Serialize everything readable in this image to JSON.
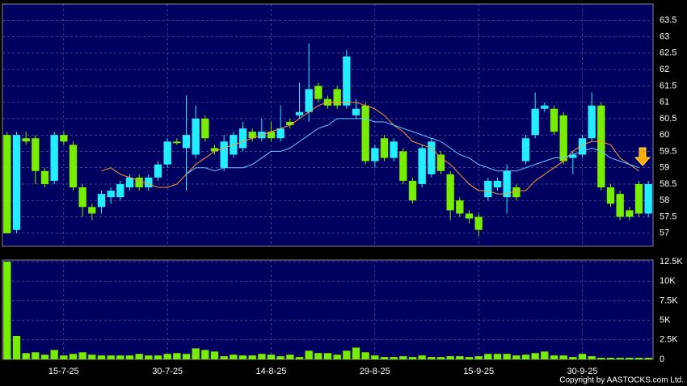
{
  "chart_data": [
    {
      "type": "candlestick",
      "ylim": [
        56.6,
        64.0
      ],
      "yticks": [
        57,
        57.5,
        58,
        58.5,
        59,
        59.5,
        60,
        60.5,
        61,
        61.5,
        62,
        62.5,
        63,
        63.5
      ],
      "grid": true,
      "up_color": "#22eeff",
      "down_color": "#77ee00",
      "open": [
        60.0,
        57.1,
        59.9,
        59.9,
        58.9,
        58.6,
        60.0,
        59.7,
        58.4,
        57.8,
        57.8,
        58.1,
        58.1,
        58.4,
        58.7,
        58.4,
        58.7,
        59.1,
        59.8,
        59.6,
        59.4,
        60.5,
        59.6,
        59.0,
        59.4,
        59.6,
        60.1,
        59.9,
        60.1,
        59.9,
        60.4,
        60.6,
        60.7,
        61.5,
        61.1,
        61.4,
        60.9,
        60.6,
        60.9,
        59.2,
        59.9,
        59.3,
        59.5,
        58.6,
        58.5,
        58.8,
        59.4,
        58.8,
        58.0,
        57.6,
        57.5,
        58.1,
        58.4,
        58.1,
        58.4,
        59.2,
        60.0,
        60.8,
        60.8,
        60.6,
        59.3,
        59.4,
        59.9,
        60.9,
        58.4,
        58.2,
        57.7,
        58.5,
        57.6
      ],
      "high": [
        60.1,
        60.1,
        60.1,
        60.0,
        59.0,
        60.1,
        60.1,
        59.8,
        58.5,
        57.9,
        58.3,
        58.4,
        58.6,
        58.8,
        58.8,
        58.8,
        59.2,
        59.9,
        59.9,
        61.2,
        60.9,
        60.6,
        59.7,
        60.0,
        60.1,
        60.4,
        60.2,
        60.5,
        60.4,
        60.9,
        60.5,
        61.6,
        62.8,
        61.6,
        61.2,
        61.5,
        62.6,
        61.1,
        61.0,
        59.7,
        60.0,
        59.9,
        59.6,
        58.7,
        59.7,
        59.9,
        59.5,
        58.9,
        58.1,
        57.7,
        57.6,
        58.7,
        58.7,
        59.1,
        58.5,
        60.0,
        61.3,
        61.0,
        60.9,
        60.7,
        59.5,
        60.0,
        61.3,
        61.0,
        58.5,
        58.3,
        57.8,
        58.6,
        58.6
      ],
      "low": [
        57.0,
        57.0,
        59.7,
        58.5,
        58.4,
        58.5,
        59.7,
        58.3,
        57.5,
        57.4,
        57.6,
        57.9,
        58.0,
        58.3,
        58.3,
        58.3,
        58.6,
        59.0,
        59.7,
        58.3,
        59.3,
        59.8,
        59.4,
        58.9,
        59.3,
        59.5,
        59.8,
        59.8,
        59.8,
        59.8,
        60.2,
        60.5,
        60.4,
        61.0,
        60.8,
        60.8,
        60.8,
        60.5,
        59.1,
        59.0,
        59.2,
        59.2,
        58.5,
        57.9,
        58.4,
        58.7,
        58.8,
        57.4,
        57.5,
        57.3,
        56.9,
        58.0,
        58.3,
        57.6,
        58.0,
        59.1,
        59.9,
        60.7,
        60.0,
        59.1,
        58.8,
        59.3,
        59.8,
        58.3,
        57.8,
        57.4,
        57.4,
        57.5,
        57.5
      ],
      "close": [
        57.0,
        60.0,
        59.8,
        58.9,
        58.5,
        60.0,
        59.8,
        58.4,
        57.8,
        57.6,
        58.2,
        58.3,
        58.5,
        58.7,
        58.4,
        58.7,
        59.1,
        59.8,
        59.75,
        60.0,
        60.5,
        59.9,
        59.5,
        59.8,
        60.0,
        60.2,
        59.9,
        60.1,
        59.9,
        60.2,
        60.3,
        60.7,
        61.4,
        61.1,
        60.9,
        60.9,
        62.4,
        60.8,
        59.2,
        59.6,
        59.3,
        59.8,
        58.6,
        58.0,
        59.6,
        59.8,
        58.9,
        57.7,
        57.6,
        57.45,
        57.1,
        58.6,
        58.6,
        58.9,
        58.1,
        59.9,
        60.8,
        60.9,
        60.1,
        59.2,
        59.4,
        59.9,
        60.9,
        58.4,
        57.9,
        57.5,
        57.5,
        57.6,
        58.5
      ],
      "lines": [
        {
          "color": "#ff9933",
          "values": [
            null,
            null,
            null,
            null,
            null,
            null,
            null,
            null,
            null,
            null,
            58.9,
            59.0,
            58.8,
            58.7,
            58.6,
            58.5,
            58.4,
            58.4,
            58.5,
            58.8,
            59.1,
            59.3,
            59.5,
            59.6,
            59.7,
            59.8,
            59.9,
            60.0,
            60.1,
            60.2,
            60.3,
            60.5,
            60.7,
            60.9,
            61.0,
            61.0,
            61.0,
            61.0,
            60.9,
            60.8,
            60.6,
            60.3,
            60.1,
            59.8,
            59.7,
            59.6,
            59.3,
            59.1,
            58.8,
            58.5,
            58.3,
            58.3,
            58.2,
            58.2,
            58.3,
            58.3,
            58.6,
            58.8,
            59.0,
            59.2,
            59.5,
            59.7,
            59.8,
            59.8,
            59.7,
            59.3,
            59.1,
            58.9,
            null
          ]
        },
        {
          "color": "#66ccff",
          "values": [
            null,
            null,
            null,
            null,
            null,
            null,
            null,
            null,
            null,
            null,
            null,
            null,
            null,
            null,
            null,
            null,
            null,
            null,
            null,
            58.8,
            59.0,
            59.0,
            58.9,
            59.0,
            59.0,
            59.0,
            59.1,
            59.3,
            59.5,
            59.5,
            59.6,
            59.8,
            60.0,
            60.2,
            60.3,
            60.5,
            60.5,
            60.5,
            60.5,
            60.4,
            60.4,
            60.3,
            60.2,
            60.1,
            60.0,
            59.9,
            59.8,
            59.6,
            59.4,
            59.3,
            59.1,
            59.0,
            58.9,
            58.9,
            58.9,
            59.0,
            59.1,
            59.2,
            59.3,
            59.3,
            59.4,
            59.5,
            59.6,
            59.5,
            59.3,
            59.2,
            59.1,
            59.0,
            null
          ]
        }
      ]
    },
    {
      "type": "bar",
      "color": "#77ee00",
      "grid": true,
      "ylim": [
        0,
        12700
      ],
      "yticks": [
        0,
        {
          "value": 2500,
          "label": "2.5K"
        },
        {
          "value": 5000,
          "label": "5K"
        },
        {
          "value": 7500,
          "label": "7.5K"
        },
        {
          "value": 10000,
          "label": "10K"
        },
        {
          "value": 12500,
          "label": "12.5K"
        }
      ],
      "categories": [
        null,
        null,
        null,
        null,
        null,
        null,
        "15-7-25",
        null,
        null,
        null,
        null,
        null,
        null,
        null,
        null,
        null,
        null,
        "30-7-25",
        null,
        null,
        null,
        null,
        null,
        null,
        null,
        null,
        null,
        null,
        "14-8-25",
        null,
        null,
        null,
        null,
        null,
        null,
        null,
        null,
        null,
        null,
        "29-8-25",
        null,
        null,
        null,
        null,
        null,
        null,
        null,
        null,
        null,
        null,
        "15-9-25",
        null,
        null,
        null,
        null,
        null,
        null,
        null,
        null,
        null,
        null,
        "30-9-25",
        null,
        null,
        null,
        null,
        null,
        null,
        null
      ],
      "values": [
        12500,
        3000,
        800,
        900,
        600,
        1200,
        500,
        700,
        900,
        600,
        500,
        500,
        500,
        500,
        700,
        500,
        500,
        700,
        800,
        700,
        1400,
        1200,
        1000,
        400,
        600,
        500,
        500,
        700,
        600,
        400,
        600,
        300,
        1100,
        800,
        800,
        600,
        1100,
        1500,
        900,
        500,
        300,
        300,
        400,
        300,
        500,
        300,
        300,
        400,
        400,
        300,
        400,
        700,
        700,
        700,
        500,
        600,
        800,
        1000,
        500,
        500,
        300,
        700,
        400,
        200,
        200,
        200,
        200,
        200,
        200
      ]
    }
  ],
  "copyright": "Copyright by AASTOCKS.com Ltd."
}
